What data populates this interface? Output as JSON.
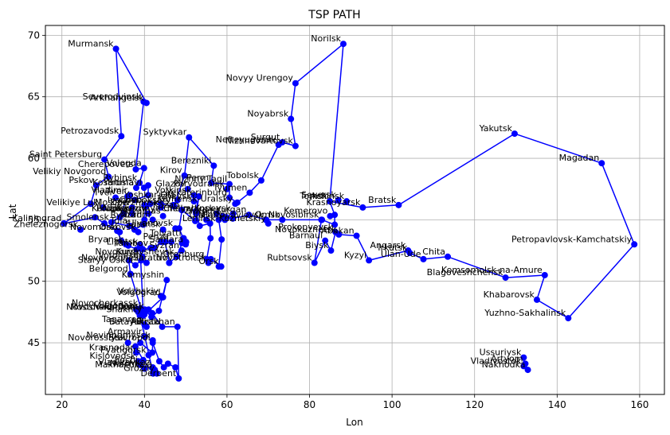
{
  "chart_data": {
    "type": "line",
    "title": "TSP PATH",
    "xlabel": "Lon",
    "ylabel": "Lat",
    "xlim": [
      16,
      166
    ],
    "ylim": [
      40.8,
      70.8
    ],
    "xticks": [
      20,
      40,
      60,
      80,
      100,
      120,
      140,
      160
    ],
    "yticks": [
      45,
      50,
      55,
      60,
      65,
      70
    ],
    "grid": true,
    "colors": {
      "line": "#0000ff",
      "marker": "#0000ff",
      "grid": "#b0b0b0"
    },
    "series": [
      {
        "points": [
          {
            "x": 20.5,
            "y": 54.7,
            "label": "Kaliningrad"
          },
          {
            "x": 27.0,
            "y": 56.3
          },
          {
            "x": 28.3,
            "y": 57.8,
            "label": "Pskov"
          },
          {
            "x": 31.3,
            "y": 58.5,
            "label": "Velikiy Novgorod"
          },
          {
            "x": 30.3,
            "y": 59.9,
            "label": "Saint Petersburg"
          },
          {
            "x": 34.4,
            "y": 61.8,
            "label": "Petrozavodsk"
          },
          {
            "x": 33.1,
            "y": 68.9,
            "label": "Murmansk"
          },
          {
            "x": 40.5,
            "y": 64.5,
            "label": "Arkhangelsk"
          },
          {
            "x": 39.8,
            "y": 64.6,
            "label": "Severodvinsk"
          },
          {
            "x": 37.9,
            "y": 59.1,
            "label": "Cherepovets"
          },
          {
            "x": 39.9,
            "y": 59.2,
            "label": "Vologda"
          },
          {
            "x": 38.8,
            "y": 58.0,
            "label": "Rybinsk"
          },
          {
            "x": 39.9,
            "y": 57.6,
            "label": "Yaroslavl"
          },
          {
            "x": 40.9,
            "y": 57.8
          },
          {
            "x": 40.9,
            "y": 57.0
          },
          {
            "x": 37.6,
            "y": 56.6
          },
          {
            "x": 35.9,
            "y": 56.9,
            "label": "Tver"
          },
          {
            "x": 34.0,
            "y": 55.2
          },
          {
            "x": 32.0,
            "y": 54.8,
            "label": "Smolensk"
          },
          {
            "x": 36.3,
            "y": 54.5
          },
          {
            "x": 37.6,
            "y": 54.2
          },
          {
            "x": 39.7,
            "y": 54.6
          },
          {
            "x": 40.4,
            "y": 56.1
          },
          {
            "x": 41.4,
            "y": 56.3
          },
          {
            "x": 44.0,
            "y": 56.3
          },
          {
            "x": 47.2,
            "y": 56.1
          },
          {
            "x": 49.7,
            "y": 58.6,
            "label": "Kirov"
          },
          {
            "x": 50.8,
            "y": 61.7,
            "label": "Syktyvkar"
          },
          {
            "x": 56.8,
            "y": 59.4,
            "label": "Berezniki"
          },
          {
            "x": 56.2,
            "y": 58.0,
            "label": "Perm"
          },
          {
            "x": 60.6,
            "y": 57.9,
            "label": "Nizhny Tagil"
          },
          {
            "x": 60.6,
            "y": 56.8,
            "label": "Yekaterinburg"
          },
          {
            "x": 62.5,
            "y": 56.4
          },
          {
            "x": 65.5,
            "y": 57.2,
            "label": "Tyumen"
          },
          {
            "x": 68.3,
            "y": 58.2,
            "label": "Tobolsk"
          },
          {
            "x": 72.5,
            "y": 61.1,
            "label": "Nefteyugansk"
          },
          {
            "x": 73.4,
            "y": 61.3,
            "label": "Surgut"
          },
          {
            "x": 76.6,
            "y": 61.0,
            "label": "Nizhnevartovsk"
          },
          {
            "x": 75.5,
            "y": 63.2,
            "label": "Noyabrsk"
          },
          {
            "x": 76.6,
            "y": 66.1,
            "label": "Novyy Urengoy"
          },
          {
            "x": 88.2,
            "y": 69.3,
            "label": "Norilsk"
          },
          {
            "x": 84.9,
            "y": 56.5,
            "label": "Tomsk"
          },
          {
            "x": 86.1,
            "y": 55.4
          },
          {
            "x": 86.1,
            "y": 54.6
          },
          {
            "x": 83.0,
            "y": 55.0
          },
          {
            "x": 82.9,
            "y": 55.0,
            "label": "Novosibirsk"
          },
          {
            "x": 73.4,
            "y": 55.0,
            "label": "Omsk"
          },
          {
            "x": 69.4,
            "y": 55.0
          },
          {
            "x": 65.3,
            "y": 55.4,
            "label": "Kurgan"
          },
          {
            "x": 61.4,
            "y": 55.1
          },
          {
            "x": 59.9,
            "y": 55.2
          },
          {
            "x": 58.0,
            "y": 55.0
          },
          {
            "x": 58.7,
            "y": 53.4
          },
          {
            "x": 58.0,
            "y": 51.2
          },
          {
            "x": 58.6,
            "y": 51.2,
            "label": "Orsk"
          },
          {
            "x": 56.1,
            "y": 51.8
          },
          {
            "x": 55.1,
            "y": 51.8,
            "label": "Orenburg"
          },
          {
            "x": 56.0,
            "y": 53.5
          },
          {
            "x": 55.9,
            "y": 54.7
          },
          {
            "x": 53.4,
            "y": 54.5
          },
          {
            "x": 52.4,
            "y": 55.7
          },
          {
            "x": 53.2,
            "y": 56.9
          },
          {
            "x": 52.3,
            "y": 54.9
          },
          {
            "x": 49.1,
            "y": 55.8
          },
          {
            "x": 48.4,
            "y": 54.3
          },
          {
            "x": 49.4,
            "y": 53.5
          },
          {
            "x": 50.1,
            "y": 53.2
          },
          {
            "x": 49.1,
            "y": 53.1
          },
          {
            "x": 47.8,
            "y": 52.0,
            "label": "Novokuybyshevsk"
          },
          {
            "x": 46.0,
            "y": 51.5
          },
          {
            "x": 45.0,
            "y": 53.2
          },
          {
            "x": 44.0,
            "y": 53.2
          },
          {
            "x": 42.4,
            "y": 52.7
          },
          {
            "x": 39.6,
            "y": 52.6
          },
          {
            "x": 39.2,
            "y": 51.7,
            "label": "Voronezh"
          },
          {
            "x": 37.8,
            "y": 51.3,
            "label": "Staryy Oskol"
          },
          {
            "x": 36.2,
            "y": 51.7
          },
          {
            "x": 36.6,
            "y": 50.6,
            "label": "Belgorod"
          },
          {
            "x": 39.7,
            "y": 47.2
          },
          {
            "x": 44.5,
            "y": 48.7,
            "label": "Volgograd"
          },
          {
            "x": 45.4,
            "y": 50.1,
            "label": "Kamyshin"
          },
          {
            "x": 43.5,
            "y": 47.6
          },
          {
            "x": 41.7,
            "y": 47.1
          },
          {
            "x": 40.1,
            "y": 47.7
          },
          {
            "x": 38.9,
            "y": 47.2
          },
          {
            "x": 38.0,
            "y": 47.7
          },
          {
            "x": 41.0,
            "y": 47.7
          },
          {
            "x": 41.9,
            "y": 47.4
          },
          {
            "x": 44.3,
            "y": 46.3,
            "label": "Elista"
          },
          {
            "x": 48.0,
            "y": 46.3,
            "label": "Astrakhan"
          },
          {
            "x": 48.3,
            "y": 42.1,
            "label": "Derbent"
          },
          {
            "x": 47.5,
            "y": 43.0
          },
          {
            "x": 45.7,
            "y": 43.3
          },
          {
            "x": 44.7,
            "y": 43.0
          },
          {
            "x": 43.6,
            "y": 43.5
          },
          {
            "x": 42.0,
            "y": 45.0,
            "label": "Stavropol"
          },
          {
            "x": 41.9,
            "y": 44.2
          },
          {
            "x": 39.0,
            "y": 45.0
          },
          {
            "x": 37.8,
            "y": 44.7
          },
          {
            "x": 39.7,
            "y": 43.6
          },
          {
            "x": 42.1,
            "y": 42.5
          },
          {
            "x": 40.1,
            "y": 45.5
          },
          {
            "x": 38.9,
            "y": 47.2
          },
          {
            "x": 39.7,
            "y": 47.5,
            "label": "Rostov-na-Donu"
          },
          {
            "x": 38.9,
            "y": 53.0
          },
          {
            "x": 38.1,
            "y": 52.6
          },
          {
            "x": 36.1,
            "y": 52.9
          },
          {
            "x": 34.4,
            "y": 53.3
          },
          {
            "x": 33.4,
            "y": 54.1
          },
          {
            "x": 30.3,
            "y": 54.7
          },
          {
            "x": 28.0,
            "y": 55.2
          },
          {
            "x": 20.5,
            "y": 54.7
          }
        ]
      },
      {
        "points": [
          {
            "x": 84.9,
            "y": 56.5
          },
          {
            "x": 92.9,
            "y": 56.0,
            "label": "Krasnoyarsk"
          },
          {
            "x": 101.6,
            "y": 56.2,
            "label": "Bratsk"
          },
          {
            "x": 129.7,
            "y": 62.0,
            "label": "Yakutsk"
          },
          {
            "x": 150.8,
            "y": 59.6,
            "label": "Magadan"
          },
          {
            "x": 158.7,
            "y": 53.0,
            "label": "Petropavlovsk-Kamchatskiy"
          },
          {
            "x": 142.7,
            "y": 47.0,
            "label": "Yuzhno-Sakhalinsk"
          },
          {
            "x": 135.1,
            "y": 48.5,
            "label": "Khabarovsk"
          },
          {
            "x": 137.0,
            "y": 50.5,
            "label": "Komsomolsk-na-Amure"
          },
          {
            "x": 127.5,
            "y": 50.3,
            "label": "Blagoveshchensk"
          },
          {
            "x": 113.5,
            "y": 52.0,
            "label": "Chita"
          },
          {
            "x": 107.6,
            "y": 51.8,
            "label": "Ulan-Ude"
          },
          {
            "x": 104.3,
            "y": 52.3,
            "label": "Irkutsk"
          },
          {
            "x": 103.9,
            "y": 52.5,
            "label": "Angarsk"
          },
          {
            "x": 94.4,
            "y": 51.7,
            "label": "Kyzyl"
          },
          {
            "x": 91.4,
            "y": 53.7,
            "label": "Abakan"
          },
          {
            "x": 87.1,
            "y": 53.8,
            "label": "Novokuznetsk"
          },
          {
            "x": 86.3,
            "y": 54.0,
            "label": "Prokopyevsk"
          },
          {
            "x": 85.2,
            "y": 52.5,
            "label": "Biysk"
          },
          {
            "x": 83.8,
            "y": 53.3,
            "label": "Barnaul"
          },
          {
            "x": 81.2,
            "y": 51.5,
            "label": "Rubtsovsk"
          },
          {
            "x": 82.9,
            "y": 55.0
          }
        ]
      },
      {
        "points": [
          {
            "x": 131.9,
            "y": 43.8,
            "label": "Ussuriysk"
          },
          {
            "x": 131.9,
            "y": 43.1,
            "label": "Vladivostok"
          },
          {
            "x": 132.9,
            "y": 42.8,
            "label": "Nakhodka"
          },
          {
            "x": 132.3,
            "y": 43.3,
            "label": "Artyom"
          }
        ]
      }
    ],
    "extra_labels": [
      {
        "x": 30.0,
        "y": 56.0,
        "label": "Velikiye Luki"
      },
      {
        "x": 24.5,
        "y": 54.2,
        "label": "Zheleznogorsk"
      },
      {
        "x": 38.5,
        "y": 54.0,
        "label": "Novomoskovsk"
      },
      {
        "x": 35.5,
        "y": 53.0,
        "label": "Bryansk"
      },
      {
        "x": 39.5,
        "y": 52.0,
        "label": "Kursk"
      },
      {
        "x": 40.5,
        "y": 51.5,
        "label": "Novovoronezh"
      },
      {
        "x": 44.0,
        "y": 48.8,
        "label": "Volzhskiy"
      },
      {
        "x": 38.5,
        "y": 47.5,
        "label": "Novoshakhtinsk"
      },
      {
        "x": 36.0,
        "y": 45.0,
        "label": "Novorossiysk"
      },
      {
        "x": 38.0,
        "y": 44.2,
        "label": "Krasnodar"
      },
      {
        "x": 38.5,
        "y": 43.5,
        "label": "Kislovodsk"
      },
      {
        "x": 42.0,
        "y": 43.0,
        "label": "Vladikavkaz"
      },
      {
        "x": 42.5,
        "y": 42.8,
        "label": "Makhachkala"
      },
      {
        "x": 42.0,
        "y": 45.2,
        "label": "Nevinnomyssk"
      },
      {
        "x": 40.0,
        "y": 45.5,
        "label": "Armavir"
      },
      {
        "x": 36.5,
        "y": 57.0,
        "label": "Vladimir"
      },
      {
        "x": 37.0,
        "y": 56.0,
        "label": "Moscow"
      },
      {
        "x": 40.0,
        "y": 55.0,
        "label": "Ryazan"
      },
      {
        "x": 52.0,
        "y": 56.5,
        "label": "Izhevsk"
      },
      {
        "x": 52.5,
        "y": 55.5,
        "label": "Naberezhnye Chelny"
      },
      {
        "x": 55.0,
        "y": 55.0,
        "label": "Ufa"
      },
      {
        "x": 57.5,
        "y": 55.5,
        "label": "Chelyabinsk"
      },
      {
        "x": 59.5,
        "y": 55.0,
        "label": "Miass"
      },
      {
        "x": 49.5,
        "y": 53.5,
        "label": "Tolyatti"
      },
      {
        "x": 50.0,
        "y": 53.0,
        "label": "Samara"
      },
      {
        "x": 46.5,
        "y": 53.2,
        "label": "Penza"
      },
      {
        "x": 46.0,
        "y": 51.5,
        "label": "Saratov"
      },
      {
        "x": 49.0,
        "y": 52.5,
        "label": "Syzran"
      },
      {
        "x": 55.5,
        "y": 51.5,
        "label": "Novotroitsk"
      },
      {
        "x": 61.5,
        "y": 55.5,
        "label": "Kopeysk"
      },
      {
        "x": 69.5,
        "y": 55.0,
        "label": "Petropavlovsk"
      },
      {
        "x": 70.0,
        "y": 54.7,
        "label": "Leninsk-Kuznetskiy"
      },
      {
        "x": 85.0,
        "y": 55.3,
        "label": "Kemerovo"
      },
      {
        "x": 89.0,
        "y": 56.5,
        "label": "Achinsk"
      },
      {
        "x": 87.0,
        "y": 56.6,
        "label": "Seversk"
      },
      {
        "x": 62.0,
        "y": 56.3,
        "label": "Kamensk-Uralsky"
      },
      {
        "x": 50.5,
        "y": 57.5,
        "label": "Glazov"
      },
      {
        "x": 52.0,
        "y": 57.0,
        "label": "Votkinsk"
      },
      {
        "x": 60.0,
        "y": 57.5,
        "label": "Pervouralsk"
      },
      {
        "x": 59.0,
        "y": 55.3,
        "label": "Zlatoust"
      },
      {
        "x": 40.0,
        "y": 56.2,
        "label": "Ivanovo"
      },
      {
        "x": 44.0,
        "y": 56.0,
        "label": "Dzerzhinsk"
      },
      {
        "x": 41.0,
        "y": 55.5,
        "label": "Kovrov"
      },
      {
        "x": 42.0,
        "y": 55.0,
        "label": "Murom"
      },
      {
        "x": 37.0,
        "y": 55.5,
        "label": "Podolsk"
      },
      {
        "x": 35.0,
        "y": 55.5,
        "label": "Kaluga"
      },
      {
        "x": 36.5,
        "y": 54.5,
        "label": "Tula"
      },
      {
        "x": 34.0,
        "y": 54.0,
        "label": "Orel"
      },
      {
        "x": 39.0,
        "y": 52.8,
        "label": "Lipetsk"
      },
      {
        "x": 41.5,
        "y": 52.7,
        "label": "Tambov"
      },
      {
        "x": 44.5,
        "y": 54.2,
        "label": "Saransk"
      },
      {
        "x": 47.0,
        "y": 56.2,
        "label": "Cheboksary"
      },
      {
        "x": 48.0,
        "y": 56.6,
        "label": "Yoshkar-Ola"
      },
      {
        "x": 47.5,
        "y": 54.3,
        "label": "Ulyanovsk"
      },
      {
        "x": 49.0,
        "y": 55.8,
        "label": "Kazan"
      },
      {
        "x": 38.0,
        "y": 57.6,
        "label": "Kostroma"
      },
      {
        "x": 33.0,
        "y": 56.8,
        "label": "Tver"
      },
      {
        "x": 40.0,
        "y": 46.5,
        "label": "Taganrog"
      },
      {
        "x": 40.5,
        "y": 46.3,
        "label": "Bataysk"
      },
      {
        "x": 41.0,
        "y": 44.0,
        "label": "Pyatigorsk"
      },
      {
        "x": 39.0,
        "y": 43.2,
        "label": "Sochi"
      },
      {
        "x": 40.0,
        "y": 42.9,
        "label": "Nalchik"
      },
      {
        "x": 43.0,
        "y": 42.5,
        "label": "Grozny"
      },
      {
        "x": 40.0,
        "y": 47.3,
        "label": "Shakhty"
      },
      {
        "x": 40.5,
        "y": 47.6,
        "label": "Volgodonsk"
      },
      {
        "x": 39.0,
        "y": 47.8,
        "label": "Novocherkassk"
      },
      {
        "x": 44.5,
        "y": 55.3,
        "label": "Arzamas"
      }
    ]
  }
}
